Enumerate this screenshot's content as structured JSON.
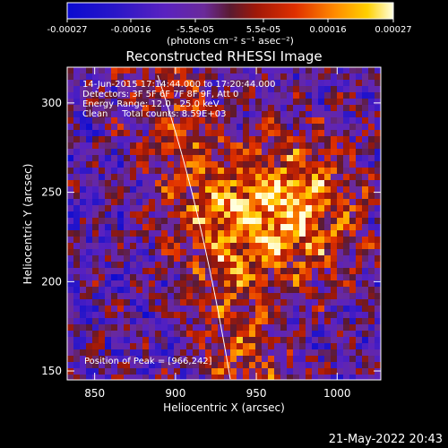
{
  "chart_data": {
    "type": "heatmap",
    "title": "Reconstructed RHESSI Image",
    "xlabel": "Heliocentric X (arcsec)",
    "ylabel": "Heliocentric Y (arcsec)",
    "xlim": [
      833,
      1027
    ],
    "ylim": [
      145,
      320
    ],
    "x_ticks": [
      850,
      900,
      950,
      1000
    ],
    "y_ticks": [
      150,
      200,
      250,
      300
    ],
    "colorbar": {
      "ticks": [
        "-0.00027",
        "-0.00016",
        "-5.5e-05",
        "5.5e-05",
        "0.00016",
        "0.00027"
      ],
      "unit_label": "(photons cm⁻² s⁻¹ asec⁻²)",
      "range": [
        -0.00027,
        0.00027
      ]
    },
    "annotations": [
      "14-Jun-2015 17:14:44.000 to 17:20:44.000",
      "Detectors: 3F 5F 6F 7F 8F 9F, Att 0",
      "Energy Range: 12.0 - 25.0 keV",
      "Clean     Total counts: 8.59E+03"
    ],
    "peak_label": "Position of Peak = [966,242]",
    "peak": [
      966,
      242
    ]
  },
  "footer": {
    "timestamp": "21-May-2022 20:43"
  },
  "colors": {
    "background": "#000000",
    "limb_line": "#ffffff",
    "axis": "#ffffff"
  }
}
